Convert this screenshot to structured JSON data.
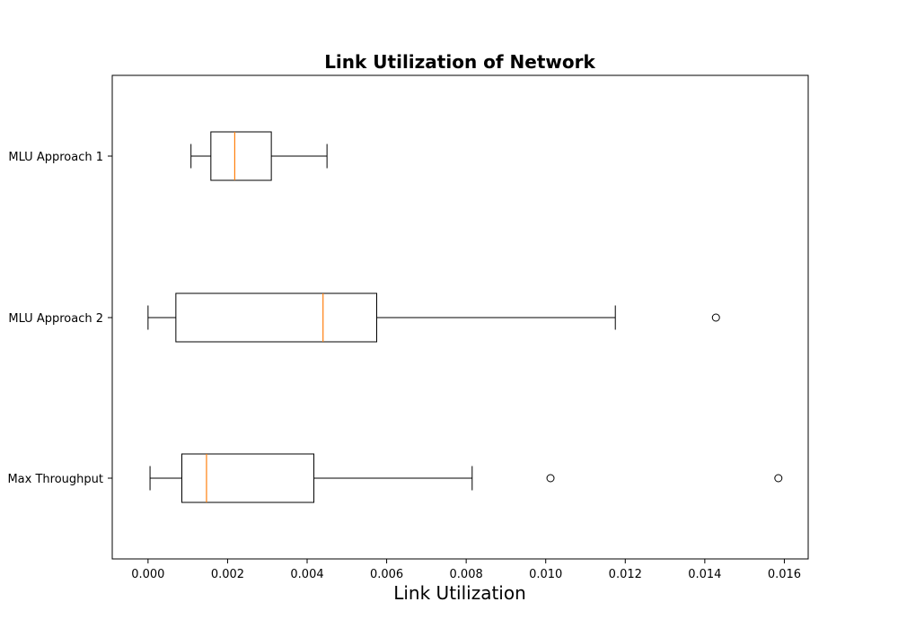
{
  "chart_data": {
    "type": "boxplot",
    "orientation": "horizontal",
    "title": "Link Utilization of Network",
    "xlabel": "Link Utilization",
    "ylabel": "",
    "xlim": [
      -0.0009,
      0.0166
    ],
    "x_ticks": [
      0.0,
      0.002,
      0.004,
      0.006,
      0.008,
      0.01,
      0.012,
      0.014,
      0.016
    ],
    "x_tick_labels": [
      "0.000",
      "0.002",
      "0.004",
      "0.006",
      "0.008",
      "0.010",
      "0.012",
      "0.014",
      "0.016"
    ],
    "grid": false,
    "categories": [
      "MLU Approach 1",
      "MLU Approach 2",
      "Max Throughput"
    ],
    "series": [
      {
        "whisker_low": 0.00108,
        "q1": 0.00158,
        "median": 0.00218,
        "q3": 0.0031,
        "whisker_high": 0.0045,
        "outliers": []
      },
      {
        "whisker_low": 0.0,
        "q1": 0.0007,
        "median": 0.0044,
        "q3": 0.00575,
        "whisker_high": 0.01175,
        "outliers": [
          0.01428
        ]
      },
      {
        "whisker_low": 5e-05,
        "q1": 0.00085,
        "median": 0.00147,
        "q3": 0.00417,
        "whisker_high": 0.00815,
        "outliers": [
          0.01012,
          0.01585
        ]
      }
    ],
    "colors": {
      "box": "#000000",
      "median": "#ff7f0e",
      "background": "#ffffff"
    }
  }
}
